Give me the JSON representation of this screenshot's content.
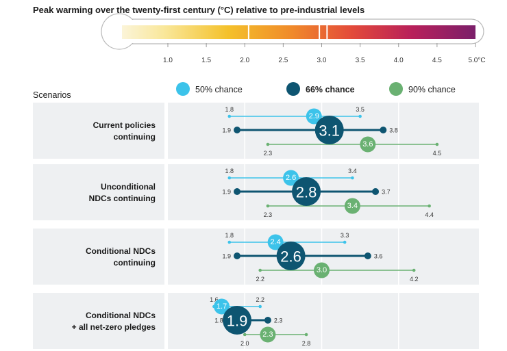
{
  "title": "Peak warming over the twenty-first century (°C) relative to pre-industrial levels",
  "chart_data": {
    "type": "range-dot",
    "title": "Peak warming over the twenty-first century (°C) relative to pre-industrial levels",
    "scale": {
      "min": 0.6,
      "max": 5.0,
      "ticks": [
        1.0,
        1.5,
        2.0,
        2.5,
        3.0,
        3.5,
        4.0,
        4.5
      ],
      "tick_labels": [
        "1.0",
        "1.5",
        "2.0",
        "2.5",
        "3.0",
        "3.5",
        "4.0",
        "4.5"
      ],
      "end_label": "5.0°C"
    },
    "scenarios_header": "Scenarios",
    "legend": [
      {
        "name": "50% chance",
        "color": "#3cc3ea"
      },
      {
        "name": "66% chance",
        "color": "#0e5571"
      },
      {
        "name": "90% chance",
        "color": "#6ab172"
      }
    ],
    "scenarios": [
      {
        "name": "Current policies continuing",
        "label_lines": [
          "Current policies",
          "continuing"
        ],
        "chance_50": {
          "low": 1.8,
          "central": 2.9,
          "high": 3.5,
          "low_label": "1.8",
          "central_label": "2.9",
          "high_label": "3.5"
        },
        "chance_66": {
          "low": 1.9,
          "central": 3.1,
          "high": 3.8,
          "low_label": "1.9",
          "central_label": "3.1",
          "high_label": "3.8"
        },
        "chance_90": {
          "low": 2.3,
          "central": 3.6,
          "high": 4.5,
          "low_label": "2.3",
          "central_label": "3.6",
          "high_label": "4.5"
        }
      },
      {
        "name": "Unconditional NDCs continuing",
        "label_lines": [
          "Unconditional",
          "NDCs continuing"
        ],
        "chance_50": {
          "low": 1.8,
          "central": 2.6,
          "high": 3.4,
          "low_label": "1.8",
          "central_label": "2.6",
          "high_label": "3.4"
        },
        "chance_66": {
          "low": 1.9,
          "central": 2.8,
          "high": 3.7,
          "low_label": "1.9",
          "central_label": "2.8",
          "high_label": "3.7"
        },
        "chance_90": {
          "low": 2.3,
          "central": 3.4,
          "high": 4.4,
          "low_label": "2.3",
          "central_label": "3.4",
          "high_label": "4.4"
        }
      },
      {
        "name": "Conditional NDCs continuing",
        "label_lines": [
          "Conditional NDCs",
          "continuing"
        ],
        "chance_50": {
          "low": 1.8,
          "central": 2.4,
          "high": 3.3,
          "low_label": "1.8",
          "central_label": "2.4",
          "high_label": "3.3"
        },
        "chance_66": {
          "low": 1.9,
          "central": 2.6,
          "high": 3.6,
          "low_label": "1.9",
          "central_label": "2.6",
          "high_label": "3.6"
        },
        "chance_90": {
          "low": 2.2,
          "central": 3.0,
          "high": 4.2,
          "low_label": "2.2",
          "central_label": "3.0",
          "high_label": "4.2"
        }
      },
      {
        "name": "Conditional NDCs + all net-zero pledges",
        "label_lines": [
          "Conditional NDCs",
          "+ all net-zero pledges"
        ],
        "chance_50": {
          "low": 1.6,
          "central": 1.7,
          "high": 2.2,
          "low_label": "1.6",
          "central_label": "1.7",
          "high_label": "2.2"
        },
        "chance_66": {
          "low": 1.8,
          "central": 1.9,
          "high": 2.3,
          "low_label": "1.8",
          "central_label": "1.9",
          "high_label": "2.3"
        },
        "chance_90": {
          "low": 2.0,
          "central": 2.3,
          "high": 2.8,
          "low_label": "2.0",
          "central_label": "2.3",
          "high_label": "2.8"
        }
      }
    ]
  }
}
